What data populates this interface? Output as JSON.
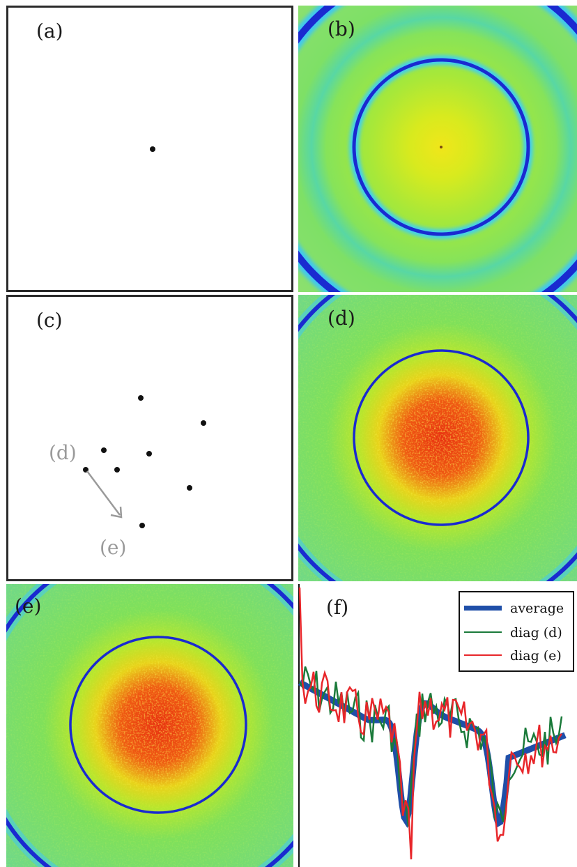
{
  "panels": {
    "a": {
      "label": "(a)"
    },
    "b": {
      "label": "(b)"
    },
    "c": {
      "label": "(c)",
      "arrow_start_label": "(d)",
      "arrow_end_label": "(e)"
    },
    "d": {
      "label": "(d)"
    },
    "e": {
      "label": "(e)"
    },
    "f": {
      "label": "(f)"
    }
  },
  "legend": {
    "items": [
      {
        "label": "average",
        "color": "#1f4fa8"
      },
      {
        "label": "diag (d)",
        "color": "#1a7a3a"
      },
      {
        "label": "diag (e)",
        "color": "#e8262a"
      }
    ]
  },
  "colors": {
    "ring": "#1a2ad0",
    "field_green": "#7fe05a",
    "center_yellow": "#e6e61a",
    "hot_red": "#e83010",
    "cyan_edge": "#40d8e0",
    "arrow_gray": "#9a9a9a"
  }
}
